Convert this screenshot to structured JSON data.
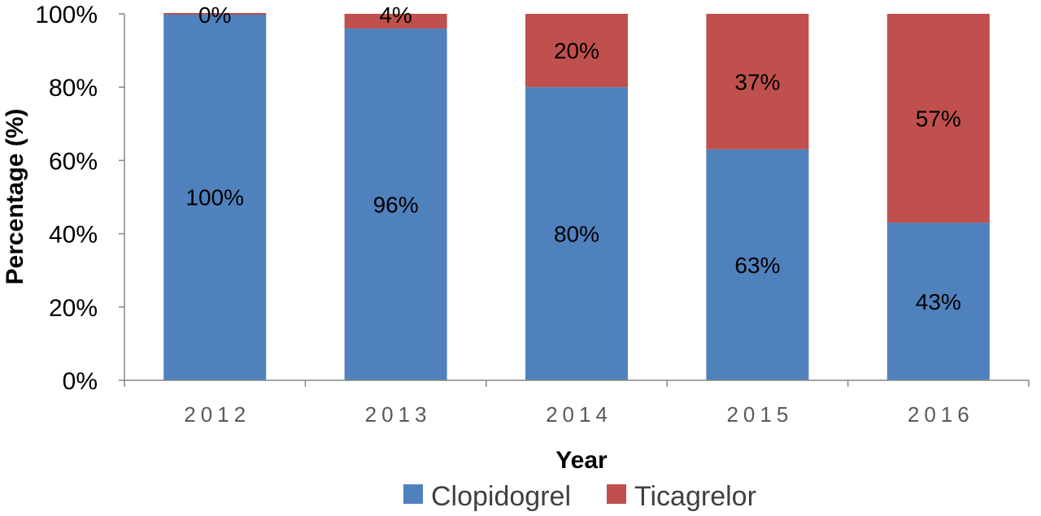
{
  "chart_data": {
    "type": "bar",
    "stacked": true,
    "percent": true,
    "categories": [
      "2012",
      "2013",
      "2014",
      "2015",
      "2016"
    ],
    "series": [
      {
        "name": "Clopidogrel",
        "color": "#4F81BD",
        "values": [
          100,
          96,
          80,
          63,
          43
        ],
        "labels": [
          "100%",
          "96%",
          "80%",
          "63%",
          "43%"
        ]
      },
      {
        "name": "Ticagrelor",
        "color": "#C0504D",
        "values": [
          0,
          4,
          20,
          37,
          57
        ],
        "labels": [
          "0%",
          "4%",
          "20%",
          "37%",
          "57%"
        ]
      }
    ],
    "xlabel": "Year",
    "ylabel": "Percentage (%)",
    "ylim": [
      0,
      100
    ],
    "yticks": [
      "0%",
      "20%",
      "40%",
      "60%",
      "80%",
      "100%"
    ],
    "grid": false,
    "legend": "bottom"
  }
}
